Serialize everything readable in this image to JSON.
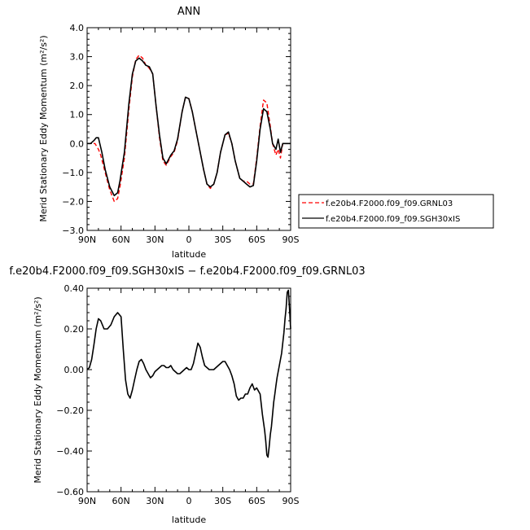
{
  "chart_data": [
    {
      "type": "line",
      "title": "ANN",
      "xlabel": "latitude",
      "ylabel": "Merid Stationary Eddy Momentum (m²/s²)",
      "ylim": [
        -3.0,
        4.0
      ],
      "yticks": [
        -3.0,
        -2.0,
        -1.0,
        0.0,
        1.0,
        2.0,
        3.0,
        4.0
      ],
      "ytick_labels": [
        "−3.0",
        "−2.0",
        "−1.0",
        "0.0",
        "1.0",
        "2.0",
        "3.0",
        "4.0"
      ],
      "xlim": [
        90,
        -90
      ],
      "xticks": [
        90,
        60,
        30,
        0,
        -30,
        -60,
        -90
      ],
      "xtick_labels": [
        "90N",
        "60N",
        "30N",
        "0",
        "30S",
        "60S",
        "90S"
      ],
      "legend": "right-bottom",
      "series": [
        {
          "name": "f.e20b4.F2000.f09_f09.GRNL03",
          "color": "#ff0000",
          "dash": true,
          "x": [
            90,
            87,
            83,
            80,
            78,
            74,
            70,
            66,
            63,
            61,
            57,
            53,
            50,
            47,
            44,
            41,
            38,
            35,
            32,
            29,
            26,
            23,
            20,
            16,
            13,
            10,
            6,
            3,
            0,
            -3,
            -6,
            -9,
            -13,
            -16,
            -19,
            -22,
            -25,
            -28,
            -32,
            -35,
            -38,
            -41,
            -45,
            -48,
            -51,
            -54,
            -57,
            -60,
            -63,
            -66,
            -69,
            -72,
            -74,
            -77,
            -79,
            -81,
            -83,
            -85,
            -86,
            -88,
            -90
          ],
          "y": [
            0.0,
            0.0,
            0.0,
            -0.2,
            -0.4,
            -1.0,
            -1.6,
            -2.0,
            -1.9,
            -1.5,
            -0.5,
            1.2,
            2.3,
            2.9,
            3.05,
            2.95,
            2.7,
            2.6,
            2.4,
            1.3,
            0.2,
            -0.6,
            -0.75,
            -0.45,
            -0.3,
            0.1,
            1.1,
            1.6,
            1.55,
            1.1,
            0.5,
            -0.1,
            -0.9,
            -1.4,
            -1.55,
            -1.4,
            -1.0,
            -0.3,
            0.3,
            0.35,
            0.0,
            -0.6,
            -1.2,
            -1.3,
            -1.3,
            -1.4,
            -1.4,
            -0.5,
            0.6,
            1.5,
            1.4,
            0.6,
            0.0,
            -0.4,
            -0.2,
            -0.5,
            0.0,
            0.0,
            0.0,
            0.0,
            0.0
          ]
        },
        {
          "name": "f.e20b4.F2000.f09_f09.SGH30xIS",
          "color": "#000000",
          "dash": false,
          "x": [
            90,
            87,
            84,
            82,
            80,
            77,
            74,
            70,
            66,
            63,
            61,
            57,
            53,
            50,
            47,
            44,
            41,
            38,
            35,
            32,
            29,
            26,
            23,
            20,
            16,
            13,
            10,
            6,
            3,
            0,
            -3,
            -6,
            -9,
            -13,
            -16,
            -19,
            -22,
            -25,
            -28,
            -32,
            -35,
            -38,
            -41,
            -45,
            -48,
            -51,
            -54,
            -57,
            -60,
            -63,
            -66,
            -69,
            -72,
            -74,
            -77,
            -79,
            -81,
            -83,
            -85,
            -88,
            -90
          ],
          "y": [
            0.0,
            0.0,
            0.1,
            0.2,
            0.2,
            -0.3,
            -0.9,
            -1.5,
            -1.8,
            -1.7,
            -1.3,
            -0.3,
            1.4,
            2.4,
            2.85,
            2.95,
            2.85,
            2.7,
            2.65,
            2.4,
            1.3,
            0.3,
            -0.5,
            -0.7,
            -0.4,
            -0.25,
            0.15,
            1.1,
            1.6,
            1.55,
            1.1,
            0.5,
            -0.1,
            -0.9,
            -1.4,
            -1.5,
            -1.4,
            -1.0,
            -0.3,
            0.3,
            0.4,
            0.0,
            -0.6,
            -1.2,
            -1.3,
            -1.4,
            -1.5,
            -1.45,
            -0.6,
            0.5,
            1.2,
            1.1,
            0.5,
            0.0,
            -0.2,
            0.15,
            -0.3,
            0.0,
            0.0,
            0.0,
            0.0
          ]
        }
      ]
    },
    {
      "type": "line",
      "title": "f.e20b4.F2000.f09_f09.SGH30xIS − f.e20b4.F2000.f09_f09.GRNL03",
      "xlabel": "latitude",
      "ylabel": "Merid Stationary Eddy Momentum (m²/s²)",
      "ylim": [
        -0.6,
        0.4
      ],
      "yticks": [
        -0.6,
        -0.4,
        -0.2,
        0.0,
        0.2,
        0.4
      ],
      "ytick_labels": [
        "−0.60",
        "−0.40",
        "−0.20",
        "0.00",
        "0.20",
        "0.40"
      ],
      "xlim": [
        90,
        -90
      ],
      "xticks": [
        90,
        60,
        30,
        0,
        -30,
        -60,
        -90
      ],
      "xtick_labels": [
        "90N",
        "60N",
        "30N",
        "0",
        "30S",
        "60S",
        "90S"
      ],
      "series": [
        {
          "color": "#000000",
          "x": [
            90,
            88,
            86,
            84,
            82,
            80,
            78,
            75,
            72,
            69,
            66,
            63,
            60,
            58,
            56,
            54,
            52,
            50,
            48,
            46,
            44,
            42,
            40,
            38,
            36,
            34,
            32,
            30,
            28,
            26,
            24,
            22,
            20,
            18,
            16,
            14,
            12,
            10,
            8,
            6,
            4,
            2,
            0,
            -2,
            -4,
            -6,
            -8,
            -10,
            -12,
            -14,
            -16,
            -18,
            -20,
            -22,
            -24,
            -26,
            -28,
            -30,
            -32,
            -34,
            -36,
            -38,
            -40,
            -42,
            -44,
            -46,
            -48,
            -50,
            -52,
            -54,
            -56,
            -58,
            -60,
            -62,
            -63,
            -64,
            -65,
            -66,
            -67,
            -68,
            -69,
            -70,
            -71,
            -72,
            -73,
            -74,
            -75,
            -76,
            -77,
            -78,
            -80,
            -82,
            -84,
            -85,
            -86,
            -87,
            -88,
            -89,
            -90
          ],
          "y": [
            0.0,
            0.01,
            0.05,
            0.12,
            0.2,
            0.25,
            0.24,
            0.2,
            0.2,
            0.22,
            0.26,
            0.28,
            0.26,
            0.1,
            -0.05,
            -0.12,
            -0.14,
            -0.1,
            -0.05,
            0.0,
            0.04,
            0.05,
            0.03,
            0.0,
            -0.02,
            -0.04,
            -0.03,
            -0.01,
            0.0,
            0.01,
            0.02,
            0.02,
            0.01,
            0.01,
            0.02,
            0.0,
            -0.01,
            -0.02,
            -0.02,
            -0.01,
            0.0,
            0.01,
            0.0,
            0.0,
            0.03,
            0.08,
            0.13,
            0.11,
            0.06,
            0.02,
            0.01,
            0.0,
            0.0,
            0.0,
            0.01,
            0.02,
            0.03,
            0.04,
            0.04,
            0.02,
            0.0,
            -0.03,
            -0.07,
            -0.13,
            -0.15,
            -0.14,
            -0.14,
            -0.12,
            -0.12,
            -0.09,
            -0.07,
            -0.1,
            -0.09,
            -0.11,
            -0.12,
            -0.17,
            -0.22,
            -0.26,
            -0.3,
            -0.35,
            -0.42,
            -0.43,
            -0.38,
            -0.32,
            -0.28,
            -0.22,
            -0.16,
            -0.12,
            -0.08,
            -0.04,
            0.02,
            0.08,
            0.18,
            0.25,
            0.3,
            0.38,
            0.39,
            0.3,
            0.2
          ]
        }
      ]
    }
  ]
}
